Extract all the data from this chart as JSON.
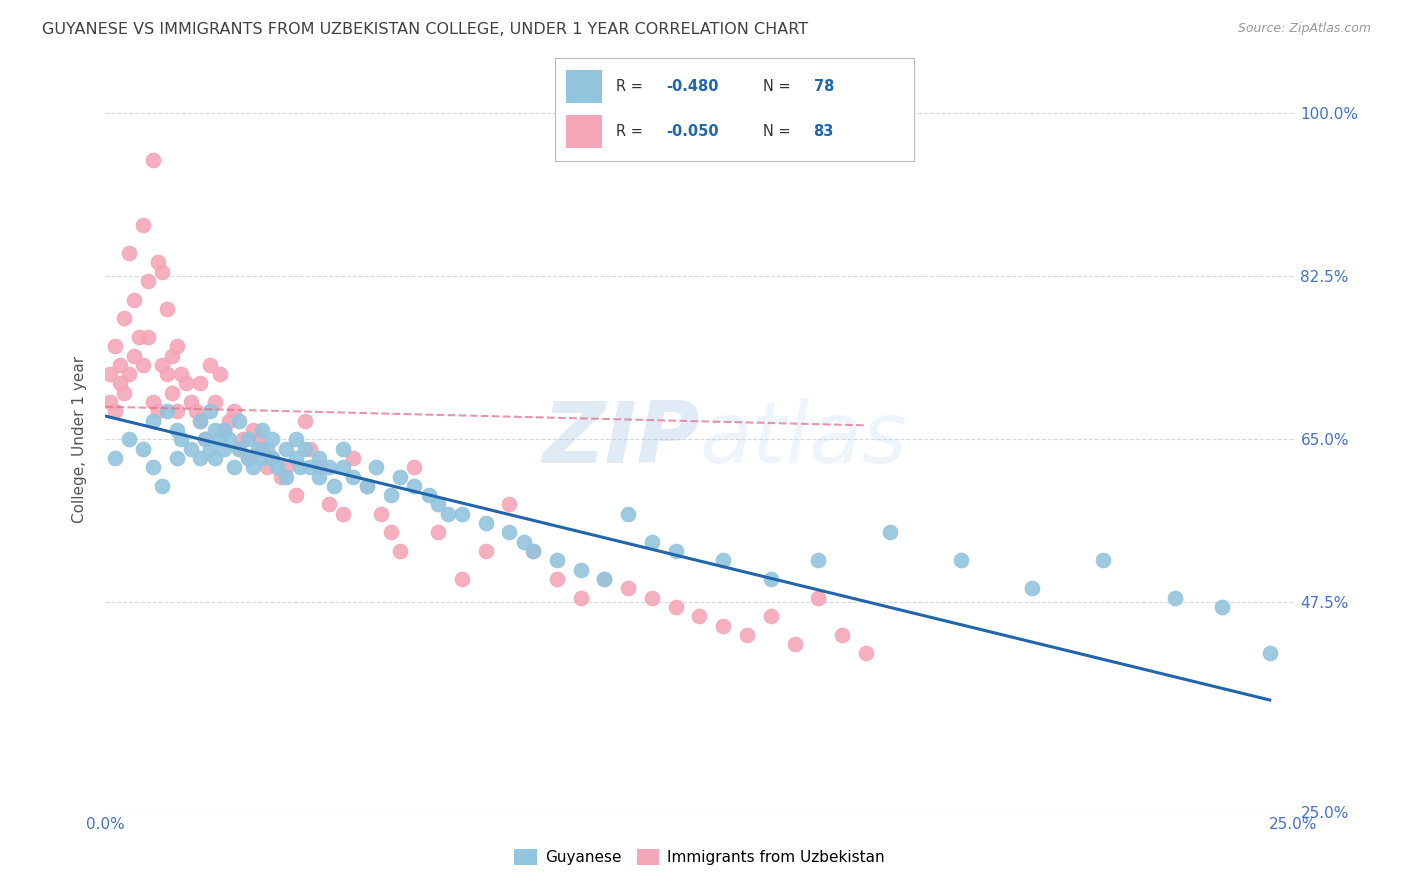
{
  "title": "GUYANESE VS IMMIGRANTS FROM UZBEKISTAN COLLEGE, UNDER 1 YEAR CORRELATION CHART",
  "source": "Source: ZipAtlas.com",
  "ylabel": "College, Under 1 year",
  "ytick_vals": [
    1.0,
    0.825,
    0.65,
    0.475,
    0.25
  ],
  "ytick_labels": [
    "100.0%",
    "82.5%",
    "65.0%",
    "47.5%",
    "25.0%"
  ],
  "xlim": [
    0.0,
    0.25
  ],
  "ylim": [
    0.25,
    1.05
  ],
  "blue_color": "#92c5de",
  "pink_color": "#f4a6b8",
  "blue_line_color": "#2166ac",
  "pink_line_color": "#e07090",
  "watermark_zip": "ZIP",
  "watermark_atlas": "atlas",
  "blue_scatter_x": [
    0.002,
    0.005,
    0.008,
    0.01,
    0.01,
    0.012,
    0.013,
    0.015,
    0.015,
    0.016,
    0.018,
    0.02,
    0.02,
    0.021,
    0.022,
    0.022,
    0.023,
    0.023,
    0.024,
    0.025,
    0.025,
    0.026,
    0.027,
    0.028,
    0.028,
    0.03,
    0.03,
    0.031,
    0.032,
    0.033,
    0.033,
    0.034,
    0.035,
    0.035,
    0.036,
    0.038,
    0.038,
    0.04,
    0.04,
    0.041,
    0.042,
    0.043,
    0.045,
    0.045,
    0.047,
    0.048,
    0.05,
    0.05,
    0.052,
    0.055,
    0.057,
    0.06,
    0.062,
    0.065,
    0.068,
    0.07,
    0.072,
    0.075,
    0.08,
    0.085,
    0.088,
    0.09,
    0.095,
    0.1,
    0.105,
    0.11,
    0.115,
    0.12,
    0.13,
    0.14,
    0.15,
    0.165,
    0.18,
    0.195,
    0.21,
    0.225,
    0.235,
    0.245
  ],
  "blue_scatter_y": [
    0.63,
    0.65,
    0.64,
    0.62,
    0.67,
    0.6,
    0.68,
    0.63,
    0.66,
    0.65,
    0.64,
    0.63,
    0.67,
    0.65,
    0.68,
    0.64,
    0.66,
    0.63,
    0.65,
    0.64,
    0.66,
    0.65,
    0.62,
    0.64,
    0.67,
    0.63,
    0.65,
    0.62,
    0.64,
    0.63,
    0.66,
    0.64,
    0.65,
    0.63,
    0.62,
    0.64,
    0.61,
    0.63,
    0.65,
    0.62,
    0.64,
    0.62,
    0.63,
    0.61,
    0.62,
    0.6,
    0.62,
    0.64,
    0.61,
    0.6,
    0.62,
    0.59,
    0.61,
    0.6,
    0.59,
    0.58,
    0.57,
    0.57,
    0.56,
    0.55,
    0.54,
    0.53,
    0.52,
    0.51,
    0.5,
    0.57,
    0.54,
    0.53,
    0.52,
    0.5,
    0.52,
    0.55,
    0.52,
    0.49,
    0.52,
    0.48,
    0.47,
    0.42
  ],
  "pink_scatter_x": [
    0.001,
    0.001,
    0.002,
    0.002,
    0.003,
    0.003,
    0.004,
    0.004,
    0.005,
    0.005,
    0.006,
    0.006,
    0.007,
    0.008,
    0.008,
    0.009,
    0.009,
    0.01,
    0.01,
    0.011,
    0.011,
    0.012,
    0.012,
    0.013,
    0.013,
    0.014,
    0.014,
    0.015,
    0.015,
    0.016,
    0.017,
    0.018,
    0.019,
    0.02,
    0.02,
    0.021,
    0.022,
    0.023,
    0.024,
    0.025,
    0.026,
    0.027,
    0.028,
    0.029,
    0.03,
    0.031,
    0.032,
    0.033,
    0.034,
    0.035,
    0.037,
    0.038,
    0.04,
    0.042,
    0.043,
    0.045,
    0.047,
    0.05,
    0.052,
    0.055,
    0.058,
    0.06,
    0.062,
    0.065,
    0.07,
    0.075,
    0.08,
    0.085,
    0.09,
    0.095,
    0.1,
    0.105,
    0.11,
    0.115,
    0.12,
    0.125,
    0.13,
    0.135,
    0.14,
    0.145,
    0.15,
    0.155,
    0.16
  ],
  "pink_scatter_y": [
    0.69,
    0.72,
    0.68,
    0.75,
    0.71,
    0.73,
    0.7,
    0.78,
    0.72,
    0.85,
    0.74,
    0.8,
    0.76,
    0.88,
    0.73,
    0.82,
    0.76,
    0.69,
    0.95,
    0.84,
    0.68,
    0.83,
    0.73,
    0.72,
    0.79,
    0.7,
    0.74,
    0.75,
    0.68,
    0.72,
    0.71,
    0.69,
    0.68,
    0.67,
    0.71,
    0.65,
    0.73,
    0.69,
    0.72,
    0.66,
    0.67,
    0.68,
    0.64,
    0.65,
    0.63,
    0.66,
    0.65,
    0.64,
    0.62,
    0.63,
    0.61,
    0.62,
    0.59,
    0.67,
    0.64,
    0.62,
    0.58,
    0.57,
    0.63,
    0.6,
    0.57,
    0.55,
    0.53,
    0.62,
    0.55,
    0.5,
    0.53,
    0.58,
    0.53,
    0.5,
    0.48,
    0.5,
    0.49,
    0.48,
    0.47,
    0.46,
    0.45,
    0.44,
    0.46,
    0.43,
    0.48,
    0.44,
    0.42
  ],
  "blue_line_x": [
    0.0,
    0.245
  ],
  "blue_line_y": [
    0.675,
    0.37
  ],
  "pink_line_x": [
    0.0,
    0.16
  ],
  "pink_line_y": [
    0.685,
    0.665
  ],
  "background_color": "#ffffff",
  "grid_color": "#d8d8d8",
  "title_color": "#404040",
  "axis_color": "#4472c4"
}
